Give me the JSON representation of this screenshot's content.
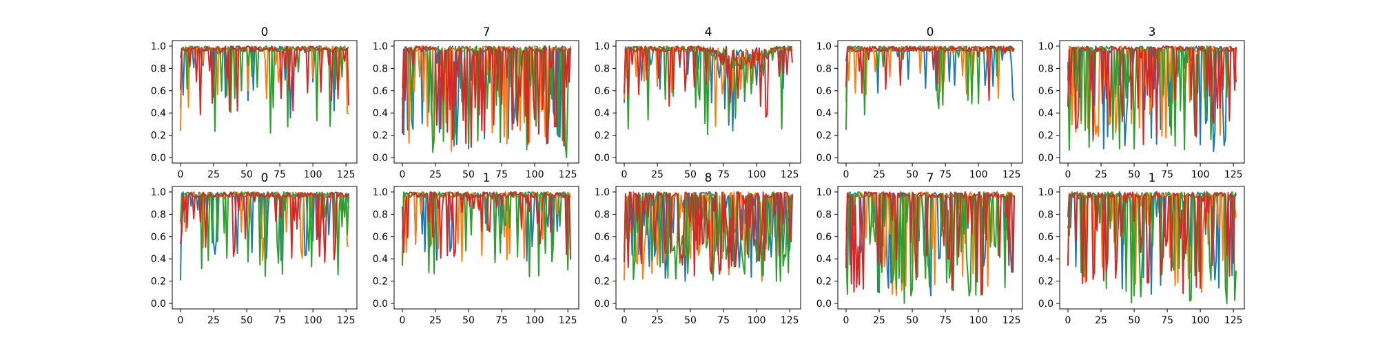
{
  "chart_data": [
    {
      "type": "line",
      "title": "0",
      "xlim": [
        0,
        127
      ],
      "ylim": [
        0,
        1
      ],
      "x_ticks": [
        0,
        25,
        50,
        75,
        100,
        125
      ],
      "y_ticks": [
        0.0,
        0.2,
        0.4,
        0.6,
        0.8,
        1.0
      ],
      "x_tick_labels": [
        "0",
        "25",
        "50",
        "75",
        "100",
        "125"
      ],
      "y_tick_labels": [
        "0.0",
        "0.2",
        "0.4",
        "0.6",
        "0.8",
        "1.0"
      ],
      "seed": 11,
      "profile": "flat",
      "colors": [
        "#1f77b4",
        "#ff7f0e",
        "#2ca02c",
        "#d62728"
      ]
    },
    {
      "type": "line",
      "title": "7",
      "xlim": [
        0,
        127
      ],
      "ylim": [
        0,
        1
      ],
      "x_ticks": [
        0,
        25,
        50,
        75,
        100,
        125
      ],
      "y_ticks": [
        0.0,
        0.2,
        0.4,
        0.6,
        0.8,
        1.0
      ],
      "x_tick_labels": [
        "0",
        "25",
        "50",
        "75",
        "100",
        "125"
      ],
      "y_tick_labels": [
        "0.0",
        "0.2",
        "0.4",
        "0.6",
        "0.8",
        "1.0"
      ],
      "seed": 22,
      "profile": "busy",
      "colors": [
        "#1f77b4",
        "#ff7f0e",
        "#2ca02c",
        "#d62728"
      ]
    },
    {
      "type": "line",
      "title": "4",
      "xlim": [
        0,
        127
      ],
      "ylim": [
        0,
        1
      ],
      "x_ticks": [
        0,
        25,
        50,
        75,
        100,
        125
      ],
      "y_ticks": [
        0.0,
        0.2,
        0.4,
        0.6,
        0.8,
        1.0
      ],
      "x_tick_labels": [
        "0",
        "25",
        "50",
        "75",
        "100",
        "125"
      ],
      "y_tick_labels": [
        "0.0",
        "0.2",
        "0.4",
        "0.6",
        "0.8",
        "1.0"
      ],
      "seed": 33,
      "profile": "dip",
      "colors": [
        "#1f77b4",
        "#ff7f0e",
        "#2ca02c",
        "#d62728"
      ]
    },
    {
      "type": "line",
      "title": "0",
      "xlim": [
        0,
        127
      ],
      "ylim": [
        0,
        1
      ],
      "x_ticks": [
        0,
        25,
        50,
        75,
        100,
        125
      ],
      "y_ticks": [
        0.0,
        0.2,
        0.4,
        0.6,
        0.8,
        1.0
      ],
      "x_tick_labels": [
        "0",
        "25",
        "50",
        "75",
        "100",
        "125"
      ],
      "y_tick_labels": [
        "0.0",
        "0.2",
        "0.4",
        "0.6",
        "0.8",
        "1.0"
      ],
      "seed": 44,
      "profile": "high",
      "colors": [
        "#1f77b4",
        "#ff7f0e",
        "#2ca02c",
        "#d62728"
      ]
    },
    {
      "type": "line",
      "title": "3",
      "xlim": [
        0,
        127
      ],
      "ylim": [
        0,
        1
      ],
      "x_ticks": [
        0,
        25,
        50,
        75,
        100,
        125
      ],
      "y_ticks": [
        0.0,
        0.2,
        0.4,
        0.6,
        0.8,
        1.0
      ],
      "x_tick_labels": [
        "0",
        "25",
        "50",
        "75",
        "100",
        "125"
      ],
      "y_tick_labels": [
        "0.0",
        "0.2",
        "0.4",
        "0.6",
        "0.8",
        "1.0"
      ],
      "seed": 55,
      "profile": "busy",
      "colors": [
        "#1f77b4",
        "#ff7f0e",
        "#2ca02c",
        "#d62728"
      ]
    },
    {
      "type": "line",
      "title": "0",
      "xlim": [
        0,
        127
      ],
      "ylim": [
        0,
        1
      ],
      "x_ticks": [
        0,
        25,
        50,
        75,
        100,
        125
      ],
      "y_ticks": [
        0.0,
        0.2,
        0.4,
        0.6,
        0.8,
        1.0
      ],
      "x_tick_labels": [
        "0",
        "25",
        "50",
        "75",
        "100",
        "125"
      ],
      "y_tick_labels": [
        "0.0",
        "0.2",
        "0.4",
        "0.6",
        "0.8",
        "1.0"
      ],
      "seed": 66,
      "profile": "flat",
      "colors": [
        "#1f77b4",
        "#ff7f0e",
        "#2ca02c",
        "#d62728"
      ]
    },
    {
      "type": "line",
      "title": "1",
      "xlim": [
        0,
        127
      ],
      "ylim": [
        0,
        1
      ],
      "x_ticks": [
        0,
        25,
        50,
        75,
        100,
        125
      ],
      "y_ticks": [
        0.0,
        0.2,
        0.4,
        0.6,
        0.8,
        1.0
      ],
      "x_tick_labels": [
        "0",
        "25",
        "50",
        "75",
        "100",
        "125"
      ],
      "y_tick_labels": [
        "0.0",
        "0.2",
        "0.4",
        "0.6",
        "0.8",
        "1.0"
      ],
      "seed": 77,
      "profile": "mid",
      "colors": [
        "#1f77b4",
        "#ff7f0e",
        "#2ca02c",
        "#d62728"
      ]
    },
    {
      "type": "line",
      "title": "8",
      "xlim": [
        0,
        127
      ],
      "ylim": [
        0,
        1
      ],
      "x_ticks": [
        0,
        25,
        50,
        75,
        100,
        125
      ],
      "y_ticks": [
        0.0,
        0.2,
        0.4,
        0.6,
        0.8,
        1.0
      ],
      "x_tick_labels": [
        "0",
        "25",
        "50",
        "75",
        "100",
        "125"
      ],
      "y_tick_labels": [
        "0.0",
        "0.2",
        "0.4",
        "0.6",
        "0.8",
        "1.0"
      ],
      "seed": 88,
      "profile": "noisy",
      "colors": [
        "#1f77b4",
        "#ff7f0e",
        "#2ca02c",
        "#d62728"
      ]
    },
    {
      "type": "line",
      "title": "7",
      "xlim": [
        0,
        127
      ],
      "ylim": [
        0,
        1
      ],
      "x_ticks": [
        0,
        25,
        50,
        75,
        100,
        125
      ],
      "y_ticks": [
        0.0,
        0.2,
        0.4,
        0.6,
        0.8,
        1.0
      ],
      "x_tick_labels": [
        "0",
        "25",
        "50",
        "75",
        "100",
        "125"
      ],
      "y_tick_labels": [
        "0.0",
        "0.2",
        "0.4",
        "0.6",
        "0.8",
        "1.0"
      ],
      "seed": 99,
      "profile": "busy",
      "colors": [
        "#1f77b4",
        "#ff7f0e",
        "#2ca02c",
        "#d62728"
      ]
    },
    {
      "type": "line",
      "title": "1",
      "xlim": [
        0,
        127
      ],
      "ylim": [
        0,
        1
      ],
      "x_ticks": [
        0,
        25,
        50,
        75,
        100,
        125
      ],
      "y_ticks": [
        0.0,
        0.2,
        0.4,
        0.6,
        0.8,
        1.0
      ],
      "x_tick_labels": [
        "0",
        "25",
        "50",
        "75",
        "100",
        "125"
      ],
      "y_tick_labels": [
        "0.0",
        "0.2",
        "0.4",
        "0.6",
        "0.8",
        "1.0"
      ],
      "seed": 111,
      "profile": "busy",
      "colors": [
        "#1f77b4",
        "#ff7f0e",
        "#2ca02c",
        "#d62728"
      ]
    }
  ]
}
